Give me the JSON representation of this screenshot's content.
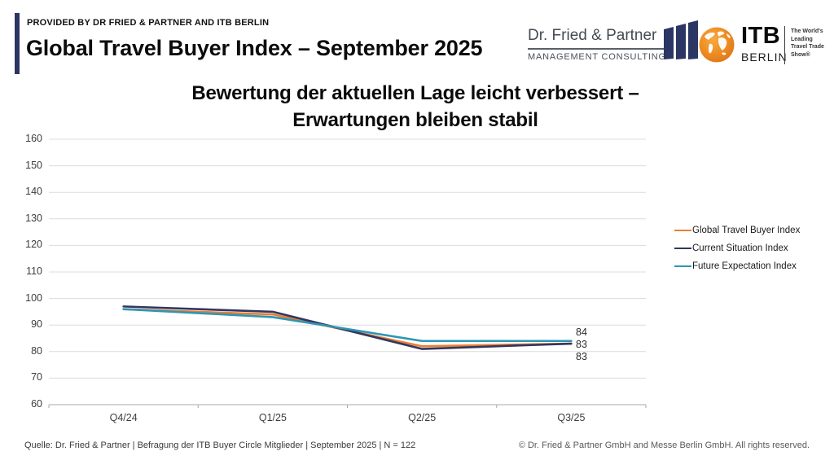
{
  "header": {
    "eyebrow": "PROVIDED BY DR FRIED & PARTNER AND ITB BERLIN",
    "title": "Global Travel Buyer Index – September 2025",
    "accent_color": "#2B3664"
  },
  "logos": {
    "dfp": {
      "name": "Dr. Fried & Partner",
      "subtitle": "MANAGEMENT CONSULTING"
    },
    "itb": {
      "name": "ITB",
      "city": "BERLIN",
      "tagline_lines": [
        "The World's",
        "Leading",
        "Travel Trade",
        "Show®"
      ]
    }
  },
  "chart_data": {
    "type": "line",
    "title_lines": [
      "Bewertung der aktuellen Lage leicht verbessert –",
      "Erwartungen bleiben stabil"
    ],
    "categories": [
      "Q4/24",
      "Q1/25",
      "Q2/25",
      "Q3/25"
    ],
    "series": [
      {
        "name": "Global Travel Buyer Index",
        "color": "#ED7D31",
        "values": [
          96,
          94,
          82,
          83
        ]
      },
      {
        "name": "Current Situation Index",
        "color": "#31375F",
        "values": [
          97,
          95,
          81,
          83
        ]
      },
      {
        "name": "Future Expectation Index",
        "color": "#2E96B4",
        "values": [
          96,
          93,
          84,
          84
        ]
      }
    ],
    "ylim": [
      60,
      160
    ],
    "ytick_step": 10,
    "grid": true,
    "legend_position": "right",
    "end_labels_top_to_bottom": [
      "84",
      "83",
      "83"
    ],
    "grid_color": "#dcdcdc",
    "axis_color": "#a8a8a8"
  },
  "footer": {
    "source": "Quelle: Dr. Fried & Partner | Befragung der ITB Buyer Circle Mitglieder | September 2025 | N = 122",
    "copyright": "© Dr. Fried & Partner GmbH and Messe Berlin GmbH. All rights reserved."
  }
}
